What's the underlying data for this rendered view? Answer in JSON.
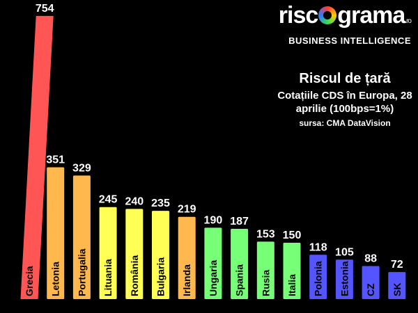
{
  "logo": {
    "word_left": "risc",
    "word_right": "grama",
    "tld": ".ro",
    "subtitle": "BUSINESS INTELLIGENCE"
  },
  "chart_data": {
    "type": "bar",
    "title": "Riscul de țară",
    "subtitle": "Cotațiile CDS în Europa, 28 aprilie (100bps=1%)",
    "source": "sursa: CMA DataVision",
    "categories": [
      "Grecia",
      "Letonia",
      "Portugalia",
      "Lituania",
      "România",
      "Bulgaria",
      "Irlanda",
      "Ungaria",
      "Spania",
      "Rusia",
      "Italia",
      "Polonia",
      "Estonia",
      "CZ",
      "SK"
    ],
    "values": [
      754,
      351,
      329,
      245,
      240,
      235,
      219,
      190,
      187,
      153,
      150,
      118,
      105,
      88,
      72
    ],
    "colors": [
      "#ff5555",
      "#ffb84d",
      "#ffb84d",
      "#ffff55",
      "#ffff55",
      "#ffff55",
      "#ffb84d",
      "#77ff77",
      "#77ff77",
      "#77ff77",
      "#77ff77",
      "#5555ff",
      "#5555ff",
      "#5555ff",
      "#5555ff"
    ],
    "label_color": "#ffffff",
    "category_label_color": "#000000",
    "background": "#000000",
    "grid": false,
    "legend": "none"
  }
}
